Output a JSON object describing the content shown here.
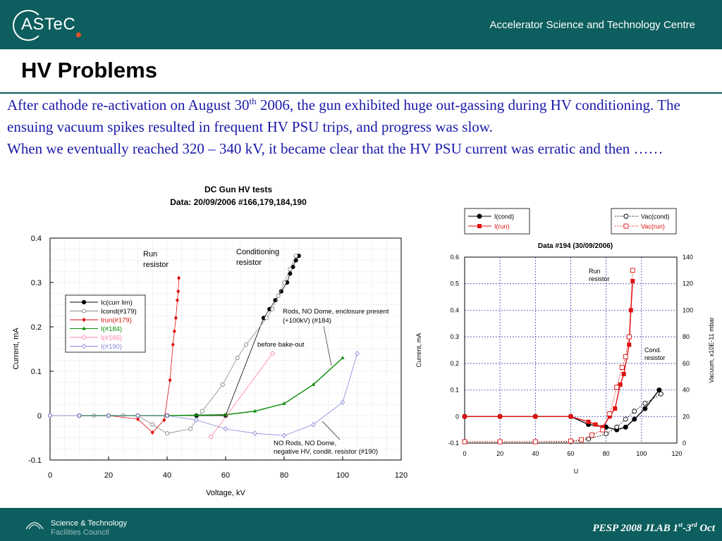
{
  "header": {
    "logo_text": "ASTeC",
    "centre_name": "Accelerator Science and Technology Centre"
  },
  "slide": {
    "title": "HV Problems",
    "para1_part1": "After cathode re-activation on August 30",
    "para1_sup": "th",
    "para1_part2": " 2006, the gun exhibited huge out-gassing during HV conditioning.  The ensuing vacuum spikes resulted in frequent HV PSU trips, and progress was slow.",
    "para2": "When we eventually reached 320 – 340 kV, it became clear that the HV PSU current was erratic and then ……"
  },
  "footer": {
    "stfc_line1": "Science & Technology",
    "stfc_line2": "Facilities Council",
    "conf_prefix": "PESP 2008 JLAB 1",
    "conf_sup1": "st",
    "conf_mid": "-3",
    "conf_sup2": "rd",
    "conf_suffix": " Oct"
  },
  "colors": {
    "header_bg": "#0d5e5e",
    "body_text": "#1a1aa8",
    "black_series": "#000000",
    "gray_series": "#888888",
    "red_series": "#e01010",
    "green_series": "#0a8a0a",
    "pink_series": "#ff80a0",
    "blue_series": "#8888dd"
  },
  "chart_data": [
    {
      "type": "line",
      "title": "DC Gun HV tests",
      "subtitle": "Data: 20/09/2006 #166,179,184,190",
      "xlabel": "Voltage, kV",
      "ylabel": "Current, mA",
      "xlim": [
        0,
        120
      ],
      "ylim": [
        -0.1,
        0.4
      ],
      "xticks": [
        0,
        20,
        40,
        60,
        80,
        100,
        120
      ],
      "yticks": [
        -0.1,
        0,
        0.1,
        0.2,
        0.3,
        0.4
      ],
      "tick_labels_x": [
        "0",
        "20",
        "40",
        "60",
        "80",
        "100",
        "120"
      ],
      "tick_labels_y": [
        "-0.1",
        "0",
        "0.1",
        "0.2",
        "0.3",
        "0.4"
      ],
      "grid": true,
      "legend_position": "upper-left",
      "series": [
        {
          "name": "Ic(curr lim)",
          "color": "#000000",
          "marker": "circle-filled",
          "line": "solid",
          "x": [
            10,
            20,
            30,
            40,
            50,
            60,
            73,
            75,
            77,
            79,
            81,
            82,
            83,
            84,
            85
          ],
          "y": [
            0,
            0,
            0,
            0,
            0,
            0,
            0.22,
            0.24,
            0.26,
            0.28,
            0.3,
            0.32,
            0.335,
            0.35,
            0.36
          ]
        },
        {
          "name": "Icond(#179)",
          "color": "#888888",
          "marker": "circle-open",
          "line": "solid",
          "x": [
            0,
            10,
            15,
            20,
            25,
            30,
            35,
            40,
            48,
            52,
            59,
            64,
            67,
            74,
            76,
            78,
            80,
            82,
            84
          ],
          "y": [
            0,
            0,
            0,
            0,
            0,
            0,
            -0.02,
            -0.04,
            -0.03,
            0.01,
            0.07,
            0.13,
            0.16,
            0.22,
            0.24,
            0.27,
            0.3,
            0.33,
            0.36
          ]
        },
        {
          "name": "Irun(#179)",
          "color": "#e01010",
          "marker": "diamond-filled",
          "line": "solid",
          "x": [
            10,
            20,
            30,
            35,
            39,
            41,
            42,
            42.5,
            43,
            43.5,
            43.8,
            44
          ],
          "y": [
            0,
            0,
            -0.008,
            -0.038,
            -0.01,
            0.08,
            0.16,
            0.19,
            0.22,
            0.26,
            0.28,
            0.31
          ]
        },
        {
          "name": "I(#184)",
          "color": "#0a8a0a",
          "marker": "triangle-filled",
          "line": "solid",
          "x": [
            10,
            20,
            30,
            40,
            50,
            60,
            70,
            80,
            90,
            100
          ],
          "y": [
            0,
            0,
            0,
            0,
            0.001,
            0.002,
            0.01,
            0.027,
            0.07,
            0.13
          ]
        },
        {
          "name": "I(#166)",
          "color": "#ff80a0",
          "marker": "circle-open",
          "line": "solid",
          "x": [
            55,
            76
          ],
          "y": [
            -0.048,
            0.14
          ]
        },
        {
          "name": "I(#190)",
          "color": "#8888dd",
          "marker": "diamond-open",
          "line": "solid",
          "x": [
            0,
            10,
            20,
            30,
            40,
            50,
            60,
            70,
            80,
            90,
            100,
            105
          ],
          "y": [
            0,
            0,
            0,
            0,
            0,
            -0.01,
            -0.03,
            -0.04,
            -0.045,
            -0.02,
            0.03,
            0.14
          ]
        }
      ],
      "annotations": [
        {
          "text": "Run\nresistor"
        },
        {
          "text": "Conditioning\nresistor"
        },
        {
          "text": "Rods,  NO Dome, enclosure present\n(+100kV) (#184)"
        },
        {
          "text": "before bake-out"
        },
        {
          "text": "NO Rods, NO Dome,\nnegative HV, condit. resistor (#190)"
        }
      ]
    },
    {
      "type": "line",
      "title": "Data #194 (30/09/2006)",
      "xlabel": "U",
      "ylabel": "Current, mA",
      "y2label": "Vacuum, x10E-11 mbar",
      "xlim": [
        0,
        120
      ],
      "ylim": [
        -0.1,
        0.6
      ],
      "y2lim": [
        0,
        140
      ],
      "xticks": [
        0,
        20,
        40,
        60,
        80,
        100,
        120
      ],
      "yticks": [
        -0.1,
        0,
        0.1,
        0.2,
        0.3,
        0.4,
        0.5,
        0.6
      ],
      "y2ticks": [
        0,
        20,
        40,
        60,
        80,
        100,
        120,
        140
      ],
      "tick_labels_x": [
        "0",
        "20",
        "40",
        "60",
        "80",
        "100",
        "120"
      ],
      "tick_labels_y": [
        "-0.1",
        "0",
        "0.1",
        "0.2",
        "0.3",
        "0.4",
        "0.5",
        "0.6"
      ],
      "tick_labels_y2": [
        "0",
        "20",
        "40",
        "60",
        "80",
        "100",
        "120",
        "140"
      ],
      "grid": true,
      "legend_position": "above-plot",
      "series": [
        {
          "name": "I(cond)",
          "axis": "left",
          "color": "#000000",
          "marker": "circle-filled",
          "line": "solid",
          "x": [
            0,
            20,
            40,
            60,
            70,
            80,
            86,
            91,
            96,
            102,
            110
          ],
          "y": [
            0,
            0,
            0,
            0,
            -0.03,
            -0.04,
            -0.05,
            -0.04,
            -0.01,
            0.03,
            0.1
          ]
        },
        {
          "name": "I(run)",
          "axis": "left",
          "color": "#e01010",
          "marker": "square-filled",
          "line": "solid",
          "x": [
            0,
            20,
            40,
            60,
            70,
            74,
            78,
            82,
            85,
            88,
            90,
            93,
            94,
            95
          ],
          "y": [
            0,
            0,
            0,
            0,
            -0.02,
            -0.03,
            -0.04,
            0,
            0.03,
            0.12,
            0.16,
            0.27,
            0.4,
            0.51
          ]
        },
        {
          "name": "Vac(cond)",
          "axis": "right",
          "color": "#000000",
          "marker": "circle-open",
          "line": "dotted",
          "x": [
            0,
            20,
            40,
            60,
            70,
            80,
            86,
            91,
            96,
            102,
            111
          ],
          "y": [
            1,
            1,
            1,
            1,
            3,
            7,
            12,
            18,
            24,
            30,
            37
          ]
        },
        {
          "name": "Vac(run)",
          "axis": "right",
          "color": "#e01010",
          "marker": "square-open",
          "line": "dotted",
          "x": [
            0,
            20,
            40,
            60,
            66,
            72,
            78,
            82,
            86,
            89,
            91,
            93,
            95
          ],
          "y": [
            1,
            1,
            1,
            1.5,
            2.5,
            6,
            10,
            22,
            42,
            57,
            65,
            80,
            130
          ]
        }
      ],
      "annotations": [
        {
          "text": "Run\nresistor"
        },
        {
          "text": "Cond.\nresistor"
        }
      ]
    }
  ]
}
